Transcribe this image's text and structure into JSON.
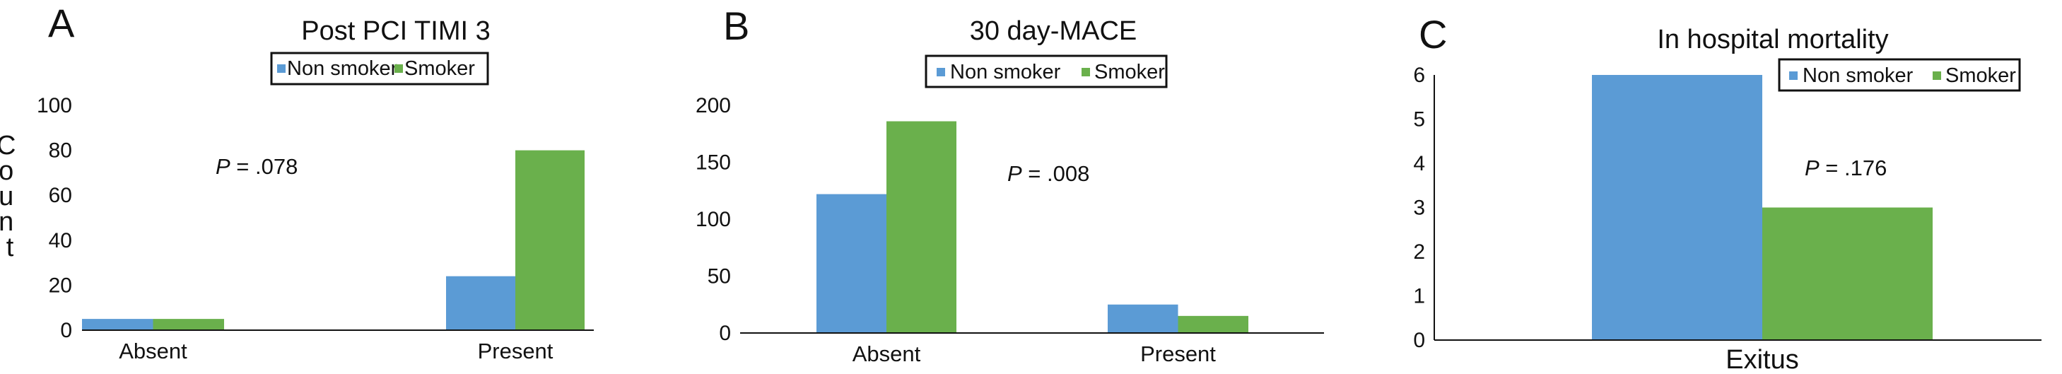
{
  "colors": {
    "non_smoker": "#5b9bd5",
    "smoker": "#6ab04c",
    "axis": "#111111"
  },
  "chart_data": [
    {
      "panel": "A",
      "type": "bar",
      "title": "Post PCI TIMI 3",
      "ylabel": "Count",
      "xlabel": "",
      "categories": [
        "Absent",
        "Present"
      ],
      "series": [
        {
          "name": "Non smoker",
          "values": [
            5,
            24
          ]
        },
        {
          "name": "Smoker",
          "values": [
            5,
            80
          ]
        }
      ],
      "ylim": [
        0,
        100
      ],
      "yticks": [
        "0",
        "20",
        "40",
        "60",
        "80",
        "100"
      ],
      "annotation": {
        "prefix": "P",
        "text": " = .078"
      },
      "legend_placement": "top-center",
      "grid": false
    },
    {
      "panel": "B",
      "type": "bar",
      "title": "30 day-MACE",
      "ylabel": "",
      "xlabel": "",
      "categories": [
        "Absent",
        "Present"
      ],
      "series": [
        {
          "name": "Non smoker",
          "values": [
            122,
            25
          ]
        },
        {
          "name": "Smoker",
          "values": [
            186,
            15
          ]
        }
      ],
      "ylim": [
        0,
        200
      ],
      "yticks": [
        "0",
        "50",
        "100",
        "150",
        "200"
      ],
      "annotation": {
        "prefix": "P",
        "text": " = .008"
      },
      "legend_placement": "top-center",
      "grid": false
    },
    {
      "panel": "C",
      "type": "bar",
      "title": "In hospital mortality",
      "ylabel": "",
      "xlabel": "",
      "categories": [
        "Exitus"
      ],
      "series": [
        {
          "name": "Non smoker",
          "values": [
            6
          ]
        },
        {
          "name": "Smoker",
          "values": [
            3
          ]
        }
      ],
      "ylim": [
        0,
        6
      ],
      "yticks": [
        "0",
        "1",
        "2",
        "3",
        "4",
        "5",
        "6"
      ],
      "annotation": {
        "prefix": "P",
        "text": " = .176"
      },
      "legend_placement": "top-right",
      "grid": false
    }
  ]
}
